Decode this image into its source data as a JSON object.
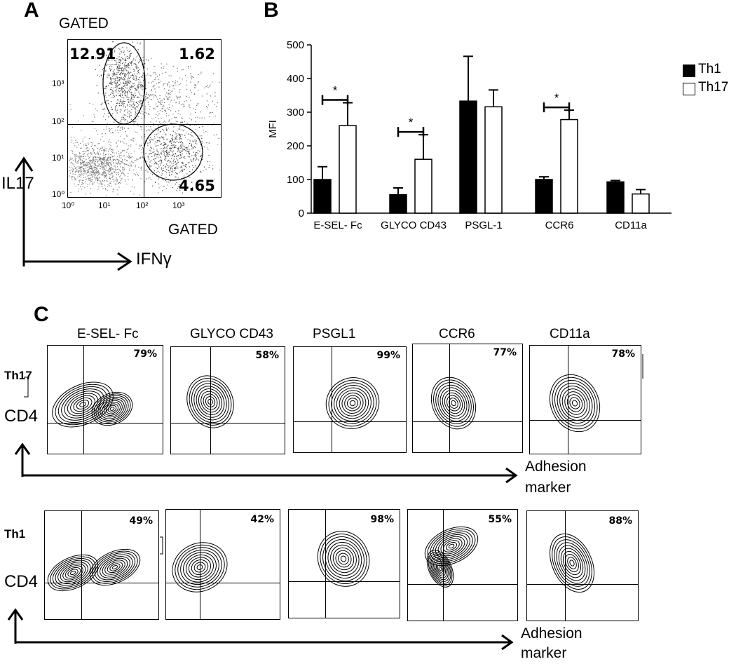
{
  "panel_a": {
    "letter": "A",
    "gated_top": "GATED",
    "gated_bottom": "GATED",
    "q_ul": "12.91",
    "q_ur": "1.62",
    "q_lr": "4.65",
    "y_ticks": [
      "10⁰",
      "10¹",
      "10²",
      "10³"
    ],
    "x_ticks": [
      "10⁰",
      "10¹",
      "10²",
      "10³"
    ],
    "y_axis_label": "IL17",
    "x_axis_label": "IFNγ"
  },
  "panel_b": {
    "letter": "B",
    "legend": [
      {
        "label": "Th1",
        "color": "#000000"
      },
      {
        "label": "Th17",
        "color": "#ffffff"
      }
    ]
  },
  "chart_data": {
    "type": "bar",
    "ylabel": "MFI",
    "xlabel": "",
    "ylim": [
      0,
      500
    ],
    "yticks": [
      0,
      100,
      200,
      300,
      400,
      500
    ],
    "categories": [
      "E-SEL- Fc",
      "GLYCO CD43",
      "PSGL-1",
      "CCR6",
      "CD11a"
    ],
    "series": [
      {
        "name": "Th1",
        "color": "#000000",
        "values": [
          100,
          55,
          333,
          100,
          93
        ],
        "errors": [
          38,
          20,
          133,
          8,
          4
        ]
      },
      {
        "name": "Th17",
        "color": "#ffffff",
        "values": [
          260,
          160,
          316,
          278,
          57
        ],
        "errors": [
          68,
          73,
          50,
          28,
          13
        ]
      }
    ],
    "significance": [
      {
        "category": "E-SEL- Fc",
        "label": "*"
      },
      {
        "category": "GLYCO CD43",
        "label": "*"
      },
      {
        "category": "CCR6",
        "label": "*"
      }
    ],
    "grid": false
  },
  "panel_c": {
    "letter": "C",
    "column_headers": [
      "E-SEL- Fc",
      "GLYCO CD43",
      "PSGL1",
      "CCR6",
      "CD11a"
    ],
    "th17": {
      "row_label": "Th17",
      "y_label": "CD4",
      "percents": [
        "79%",
        "58%",
        "99%",
        "77%",
        "78%"
      ]
    },
    "th1": {
      "row_label": "Th1",
      "y_label": "CD4",
      "percents": [
        "49%",
        "42%",
        "98%",
        "55%",
        "88%"
      ]
    },
    "x_axis_label_line1": "Adhesion",
    "x_axis_label_line2": "marker"
  }
}
